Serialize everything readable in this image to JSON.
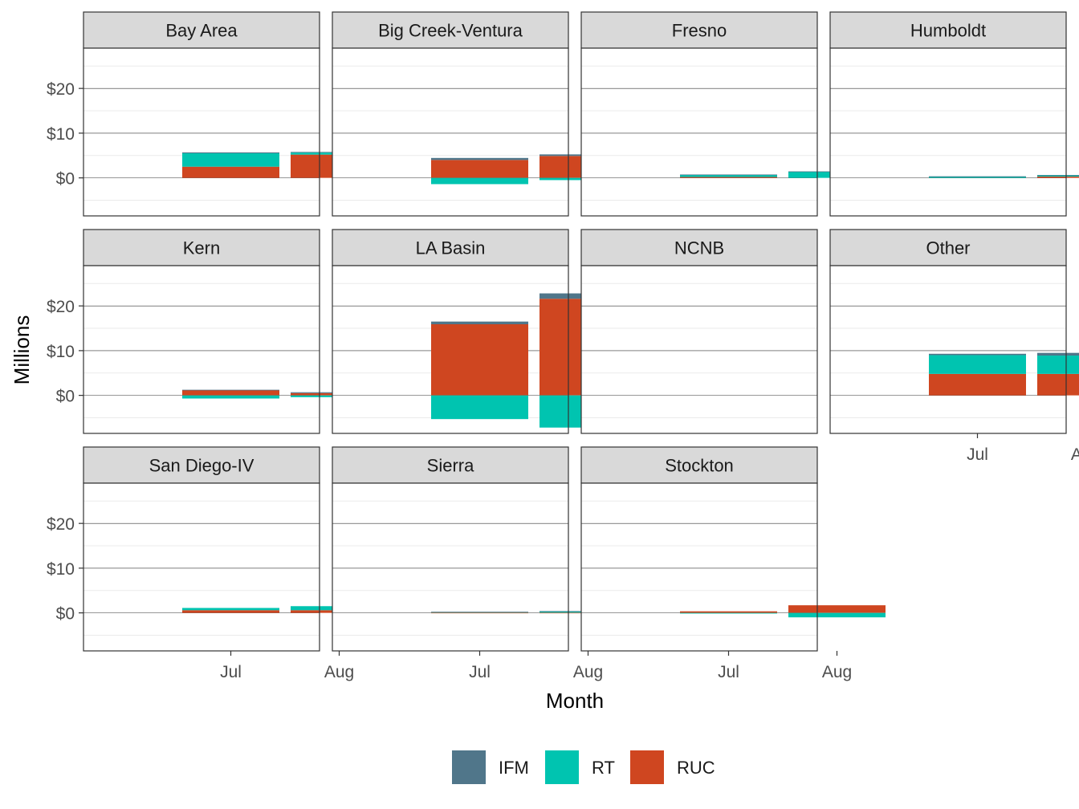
{
  "chart_data": {
    "type": "bar",
    "stacked": true,
    "layout": "facet-wrap",
    "xlabel": "Month",
    "ylabel": "Millions",
    "categories": [
      "Jul",
      "Aug"
    ],
    "ylim": [
      -8.5,
      29
    ],
    "yticks": [
      0,
      10,
      20
    ],
    "ytick_labels": [
      "$0",
      "$10",
      "$20"
    ],
    "series_colors": {
      "IFM": "#50768a",
      "RT": "#00c4b0",
      "RUC": "#cf4620"
    },
    "legend": {
      "position": "bottom",
      "entries": [
        "IFM",
        "RT",
        "RUC"
      ]
    },
    "panels": [
      {
        "name": "Bay Area",
        "values": {
          "Jul": {
            "RUC": 2.5,
            "RT": 3.0,
            "IFM": 0.2
          },
          "Aug": {
            "RUC": 5.2,
            "RT": 0.45,
            "IFM": 0.15
          }
        }
      },
      {
        "name": "Big Creek-Ventura",
        "values": {
          "Jul": {
            "RUC": 4.0,
            "RT": -1.4,
            "IFM": 0.45
          },
          "Aug": {
            "RUC": 4.9,
            "RT": -0.5,
            "IFM": 0.35
          }
        }
      },
      {
        "name": "Fresno",
        "values": {
          "Jul": {
            "RUC": 0.2,
            "RT": 0.5,
            "IFM": 0.05
          },
          "Aug": {
            "RUC": 0.0,
            "RT": 1.4,
            "IFM": 0.05
          }
        }
      },
      {
        "name": "Humboldt",
        "values": {
          "Jul": {
            "RUC": 0.0,
            "RT": 0.3,
            "IFM": 0.05
          },
          "Aug": {
            "RUC": 0.3,
            "RT": 0.3,
            "IFM": 0.05
          }
        }
      },
      {
        "name": "Kern",
        "values": {
          "Jul": {
            "RUC": 1.2,
            "RT": -0.7,
            "IFM": 0.05
          },
          "Aug": {
            "RUC": 0.5,
            "RT": -0.4,
            "IFM": 0.2
          }
        }
      },
      {
        "name": "LA Basin",
        "values": {
          "Jul": {
            "RUC": 15.9,
            "RT": -5.3,
            "IFM": 0.6
          },
          "Aug": {
            "RUC": 21.6,
            "RT": -7.2,
            "IFM": 1.2
          }
        }
      },
      {
        "name": "NCNB",
        "values": {
          "Jul": {
            "RUC": 0,
            "RT": 0,
            "IFM": 0
          },
          "Aug": {
            "RUC": 0,
            "RT": 0,
            "IFM": 0
          }
        }
      },
      {
        "name": "Other",
        "values": {
          "Jul": {
            "RUC": 4.8,
            "RT": 4.2,
            "IFM": 0.3
          },
          "Aug": {
            "RUC": 4.8,
            "RT": 4.1,
            "IFM": 0.6
          }
        }
      },
      {
        "name": "San Diego-IV",
        "values": {
          "Jul": {
            "RUC": 0.6,
            "RT": 0.5,
            "IFM": 0.0
          },
          "Aug": {
            "RUC": 0.6,
            "RT": 0.9,
            "IFM": 0.0
          }
        }
      },
      {
        "name": "Sierra",
        "values": {
          "Jul": {
            "RUC": 0.05,
            "RT": 0.15,
            "IFM": 0.05
          },
          "Aug": {
            "RUC": 0.05,
            "RT": 0.3,
            "IFM": 0.05
          }
        }
      },
      {
        "name": "Stockton",
        "values": {
          "Jul": {
            "RUC": 0.35,
            "RT": -0.15,
            "IFM": 0.0
          },
          "Aug": {
            "RUC": 1.7,
            "RT": -1.0,
            "IFM": 0.0
          }
        }
      }
    ]
  }
}
